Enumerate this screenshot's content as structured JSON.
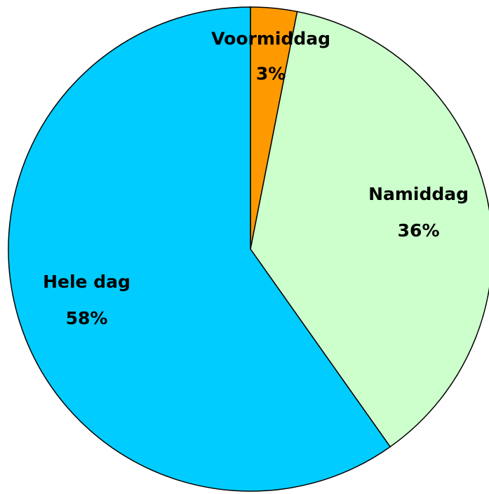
{
  "chart_data": {
    "type": "pie",
    "categories": [
      "Voormiddag",
      "Namiddag",
      "Hele dag"
    ],
    "values": [
      3,
      36,
      58
    ],
    "value_labels": [
      "3%",
      "36%",
      "58%"
    ],
    "colors": [
      "#ff9900",
      "#ccffcc",
      "#00ccff"
    ]
  }
}
